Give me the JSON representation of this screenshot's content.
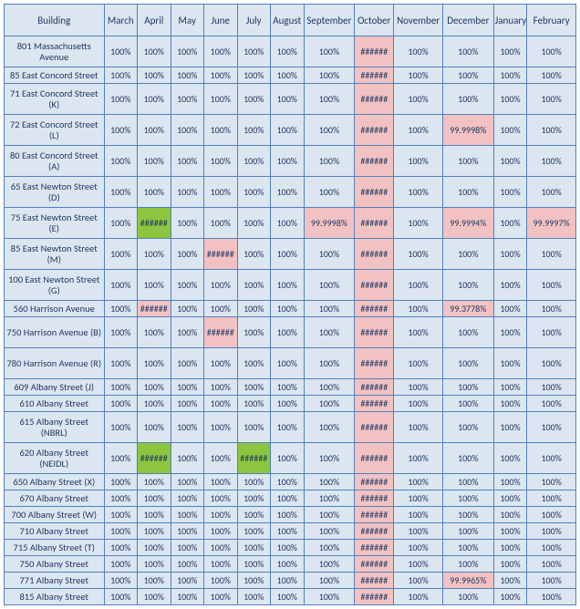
{
  "colors": {
    "border": "#4f81bd",
    "bg_default": "#dce6f1",
    "bg_pink": "#f2c2c2",
    "bg_green": "#8cc63f",
    "text": "#1f3864"
  },
  "headers": [
    "Building",
    "March",
    "April",
    "May",
    "June",
    "July",
    "August",
    "September",
    "October",
    "November",
    "December",
    "January",
    "February"
  ],
  "rows": [
    {
      "tall": true,
      "building": "801 Massachusetts Avenue",
      "cells": [
        {
          "v": "100%"
        },
        {
          "v": "100%"
        },
        {
          "v": "100%"
        },
        {
          "v": "100%"
        },
        {
          "v": "100%"
        },
        {
          "v": "100%"
        },
        {
          "v": "100%"
        },
        {
          "v": "######",
          "c": "pink"
        },
        {
          "v": "100%"
        },
        {
          "v": "100%"
        },
        {
          "v": "100%"
        },
        {
          "v": "100%"
        }
      ]
    },
    {
      "tall": false,
      "building": "85 East Concord Street",
      "cells": [
        {
          "v": "100%"
        },
        {
          "v": "100%"
        },
        {
          "v": "100%"
        },
        {
          "v": "100%"
        },
        {
          "v": "100%"
        },
        {
          "v": "100%"
        },
        {
          "v": "100%"
        },
        {
          "v": "######",
          "c": "pink"
        },
        {
          "v": "100%"
        },
        {
          "v": "100%"
        },
        {
          "v": "100%"
        },
        {
          "v": "100%"
        }
      ]
    },
    {
      "tall": true,
      "building": "71 East Concord Street (K)",
      "cells": [
        {
          "v": "100%"
        },
        {
          "v": "100%"
        },
        {
          "v": "100%"
        },
        {
          "v": "100%"
        },
        {
          "v": "100%"
        },
        {
          "v": "100%"
        },
        {
          "v": "100%"
        },
        {
          "v": "######",
          "c": "pink"
        },
        {
          "v": "100%"
        },
        {
          "v": "100%"
        },
        {
          "v": "100%"
        },
        {
          "v": "100%"
        }
      ]
    },
    {
      "tall": true,
      "building": "72 East Concord Street (L)",
      "cells": [
        {
          "v": "100%"
        },
        {
          "v": "100%"
        },
        {
          "v": "100%"
        },
        {
          "v": "100%"
        },
        {
          "v": "100%"
        },
        {
          "v": "100%"
        },
        {
          "v": "100%"
        },
        {
          "v": "######",
          "c": "pink"
        },
        {
          "v": "100%"
        },
        {
          "v": "99.9998%",
          "c": "pink"
        },
        {
          "v": "100%"
        },
        {
          "v": "100%"
        }
      ]
    },
    {
      "tall": true,
      "building": "80 East Concord Street (A)",
      "cells": [
        {
          "v": "100%"
        },
        {
          "v": "100%"
        },
        {
          "v": "100%"
        },
        {
          "v": "100%"
        },
        {
          "v": "100%"
        },
        {
          "v": "100%"
        },
        {
          "v": "100%"
        },
        {
          "v": "######",
          "c": "pink"
        },
        {
          "v": "100%"
        },
        {
          "v": "100%"
        },
        {
          "v": "100%"
        },
        {
          "v": "100%"
        }
      ]
    },
    {
      "tall": true,
      "building": "65 East Newton Street (D)",
      "cells": [
        {
          "v": "100%"
        },
        {
          "v": "100%"
        },
        {
          "v": "100%"
        },
        {
          "v": "100%"
        },
        {
          "v": "100%"
        },
        {
          "v": "100%"
        },
        {
          "v": "100%"
        },
        {
          "v": "######",
          "c": "pink"
        },
        {
          "v": "100%"
        },
        {
          "v": "100%"
        },
        {
          "v": "100%"
        },
        {
          "v": "100%"
        }
      ]
    },
    {
      "tall": true,
      "building": "75 East Newton Street (E)",
      "cells": [
        {
          "v": "100%"
        },
        {
          "v": "######",
          "c": "green"
        },
        {
          "v": "100%"
        },
        {
          "v": "100%"
        },
        {
          "v": "100%"
        },
        {
          "v": "100%"
        },
        {
          "v": "99.9998%",
          "c": "pink"
        },
        {
          "v": "######",
          "c": "pink"
        },
        {
          "v": "100%"
        },
        {
          "v": "99.9994%",
          "c": "pink"
        },
        {
          "v": "100%"
        },
        {
          "v": "99.9997%",
          "c": "pink"
        }
      ]
    },
    {
      "tall": true,
      "building": "85 East Newton Street (M)",
      "cells": [
        {
          "v": "100%"
        },
        {
          "v": "100%"
        },
        {
          "v": "100%"
        },
        {
          "v": "######",
          "c": "pink"
        },
        {
          "v": "100%"
        },
        {
          "v": "100%"
        },
        {
          "v": "100%"
        },
        {
          "v": "######",
          "c": "pink"
        },
        {
          "v": "100%"
        },
        {
          "v": "100%"
        },
        {
          "v": "100%"
        },
        {
          "v": "100%"
        }
      ]
    },
    {
      "tall": true,
      "building": "100 East Newton Street (G)",
      "cells": [
        {
          "v": "100%"
        },
        {
          "v": "100%"
        },
        {
          "v": "100%"
        },
        {
          "v": "100%"
        },
        {
          "v": "100%"
        },
        {
          "v": "100%"
        },
        {
          "v": "100%"
        },
        {
          "v": "######",
          "c": "pink"
        },
        {
          "v": "100%"
        },
        {
          "v": "100%"
        },
        {
          "v": "100%"
        },
        {
          "v": "100%"
        }
      ]
    },
    {
      "tall": false,
      "building": "560 Harrison Avenue",
      "cells": [
        {
          "v": "100%"
        },
        {
          "v": "######",
          "c": "pink"
        },
        {
          "v": "100%"
        },
        {
          "v": "100%"
        },
        {
          "v": "100%"
        },
        {
          "v": "100%"
        },
        {
          "v": "100%"
        },
        {
          "v": "######",
          "c": "pink"
        },
        {
          "v": "100%"
        },
        {
          "v": "99.3778%",
          "c": "pink"
        },
        {
          "v": "100%"
        },
        {
          "v": "100%"
        }
      ]
    },
    {
      "tall": true,
      "building": "750 Harrison Avenue (B)",
      "cells": [
        {
          "v": "100%"
        },
        {
          "v": "100%"
        },
        {
          "v": "100%"
        },
        {
          "v": "######",
          "c": "pink"
        },
        {
          "v": "100%"
        },
        {
          "v": "100%"
        },
        {
          "v": "100%"
        },
        {
          "v": "######",
          "c": "pink"
        },
        {
          "v": "100%"
        },
        {
          "v": "100%"
        },
        {
          "v": "100%"
        },
        {
          "v": "100%"
        }
      ]
    },
    {
      "tall": true,
      "building": "780 Harrison Avenue (R)",
      "cells": [
        {
          "v": "100%"
        },
        {
          "v": "100%"
        },
        {
          "v": "100%"
        },
        {
          "v": "100%"
        },
        {
          "v": "100%"
        },
        {
          "v": "100%"
        },
        {
          "v": "100%"
        },
        {
          "v": "######",
          "c": "pink"
        },
        {
          "v": "100%"
        },
        {
          "v": "100%"
        },
        {
          "v": "100%"
        },
        {
          "v": "100%"
        }
      ]
    },
    {
      "tall": false,
      "building": "609 Albany Street (J)",
      "cells": [
        {
          "v": "100%"
        },
        {
          "v": "100%"
        },
        {
          "v": "100%"
        },
        {
          "v": "100%"
        },
        {
          "v": "100%"
        },
        {
          "v": "100%"
        },
        {
          "v": "100%"
        },
        {
          "v": "######",
          "c": "pink"
        },
        {
          "v": "100%"
        },
        {
          "v": "100%"
        },
        {
          "v": "100%"
        },
        {
          "v": "100%"
        }
      ]
    },
    {
      "tall": false,
      "building": "610 Albany Street",
      "cells": [
        {
          "v": "100%"
        },
        {
          "v": "100%"
        },
        {
          "v": "100%"
        },
        {
          "v": "100%"
        },
        {
          "v": "100%"
        },
        {
          "v": "100%"
        },
        {
          "v": "100%"
        },
        {
          "v": "######",
          "c": "pink"
        },
        {
          "v": "100%"
        },
        {
          "v": "100%"
        },
        {
          "v": "100%"
        },
        {
          "v": "100%"
        }
      ]
    },
    {
      "tall": true,
      "building": "615 Albany Street (NBRL)",
      "cells": [
        {
          "v": "100%"
        },
        {
          "v": "100%"
        },
        {
          "v": "100%"
        },
        {
          "v": "100%"
        },
        {
          "v": "100%"
        },
        {
          "v": "100%"
        },
        {
          "v": "100%"
        },
        {
          "v": "######",
          "c": "pink"
        },
        {
          "v": "100%"
        },
        {
          "v": "100%"
        },
        {
          "v": "100%"
        },
        {
          "v": "100%"
        }
      ]
    },
    {
      "tall": true,
      "building": "620 Albany Street (NEIDL)",
      "cells": [
        {
          "v": "100%"
        },
        {
          "v": "######",
          "c": "green"
        },
        {
          "v": "100%"
        },
        {
          "v": "100%"
        },
        {
          "v": "######",
          "c": "green"
        },
        {
          "v": "100%"
        },
        {
          "v": "100%"
        },
        {
          "v": "######",
          "c": "pink"
        },
        {
          "v": "100%"
        },
        {
          "v": "100%"
        },
        {
          "v": "100%"
        },
        {
          "v": "100%"
        }
      ]
    },
    {
      "tall": false,
      "building": "650 Albany Street (X)",
      "cells": [
        {
          "v": "100%"
        },
        {
          "v": "100%"
        },
        {
          "v": "100%"
        },
        {
          "v": "100%"
        },
        {
          "v": "100%"
        },
        {
          "v": "100%"
        },
        {
          "v": "100%"
        },
        {
          "v": "######",
          "c": "pink"
        },
        {
          "v": "100%"
        },
        {
          "v": "100%"
        },
        {
          "v": "100%"
        },
        {
          "v": "100%"
        }
      ]
    },
    {
      "tall": false,
      "building": "670 Albany Street",
      "cells": [
        {
          "v": "100%"
        },
        {
          "v": "100%"
        },
        {
          "v": "100%"
        },
        {
          "v": "100%"
        },
        {
          "v": "100%"
        },
        {
          "v": "100%"
        },
        {
          "v": "100%"
        },
        {
          "v": "######",
          "c": "pink"
        },
        {
          "v": "100%"
        },
        {
          "v": "100%"
        },
        {
          "v": "100%"
        },
        {
          "v": "100%"
        }
      ]
    },
    {
      "tall": false,
      "building": "700 Albany Street (W)",
      "cells": [
        {
          "v": "100%"
        },
        {
          "v": "100%"
        },
        {
          "v": "100%"
        },
        {
          "v": "100%"
        },
        {
          "v": "100%"
        },
        {
          "v": "100%"
        },
        {
          "v": "100%"
        },
        {
          "v": "######",
          "c": "pink"
        },
        {
          "v": "100%"
        },
        {
          "v": "100%"
        },
        {
          "v": "100%"
        },
        {
          "v": "100%"
        }
      ]
    },
    {
      "tall": false,
      "building": "710 Albany Street",
      "cells": [
        {
          "v": "100%"
        },
        {
          "v": "100%"
        },
        {
          "v": "100%"
        },
        {
          "v": "100%"
        },
        {
          "v": "100%"
        },
        {
          "v": "100%"
        },
        {
          "v": "100%"
        },
        {
          "v": "######",
          "c": "pink"
        },
        {
          "v": "100%"
        },
        {
          "v": "100%"
        },
        {
          "v": "100%"
        },
        {
          "v": "100%"
        }
      ]
    },
    {
      "tall": false,
      "building": "715 Albany Street (T)",
      "cells": [
        {
          "v": "100%"
        },
        {
          "v": "100%"
        },
        {
          "v": "100%"
        },
        {
          "v": "100%"
        },
        {
          "v": "100%"
        },
        {
          "v": "100%"
        },
        {
          "v": "100%"
        },
        {
          "v": "######",
          "c": "pink"
        },
        {
          "v": "100%"
        },
        {
          "v": "100%"
        },
        {
          "v": "100%"
        },
        {
          "v": "100%"
        }
      ]
    },
    {
      "tall": false,
      "building": "750 Albany Street",
      "cells": [
        {
          "v": "100%"
        },
        {
          "v": "100%"
        },
        {
          "v": "100%"
        },
        {
          "v": "100%"
        },
        {
          "v": "100%"
        },
        {
          "v": "100%"
        },
        {
          "v": "100%"
        },
        {
          "v": "######",
          "c": "pink"
        },
        {
          "v": "100%"
        },
        {
          "v": "100%"
        },
        {
          "v": "100%"
        },
        {
          "v": "100%"
        }
      ]
    },
    {
      "tall": false,
      "building": "771 Albany Street",
      "cells": [
        {
          "v": "100%"
        },
        {
          "v": "100%"
        },
        {
          "v": "100%"
        },
        {
          "v": "100%"
        },
        {
          "v": "100%"
        },
        {
          "v": "100%"
        },
        {
          "v": "100%"
        },
        {
          "v": "######",
          "c": "pink"
        },
        {
          "v": "100%"
        },
        {
          "v": "99.9965%",
          "c": "pink"
        },
        {
          "v": "100%"
        },
        {
          "v": "100%"
        }
      ]
    },
    {
      "tall": false,
      "building": "815 Albany Street",
      "cells": [
        {
          "v": "100%"
        },
        {
          "v": "100%"
        },
        {
          "v": "100%"
        },
        {
          "v": "100%"
        },
        {
          "v": "100%"
        },
        {
          "v": "100%"
        },
        {
          "v": "100%"
        },
        {
          "v": "######",
          "c": "pink"
        },
        {
          "v": "100%"
        },
        {
          "v": "100%"
        },
        {
          "v": "100%"
        },
        {
          "v": "100%"
        }
      ]
    }
  ]
}
